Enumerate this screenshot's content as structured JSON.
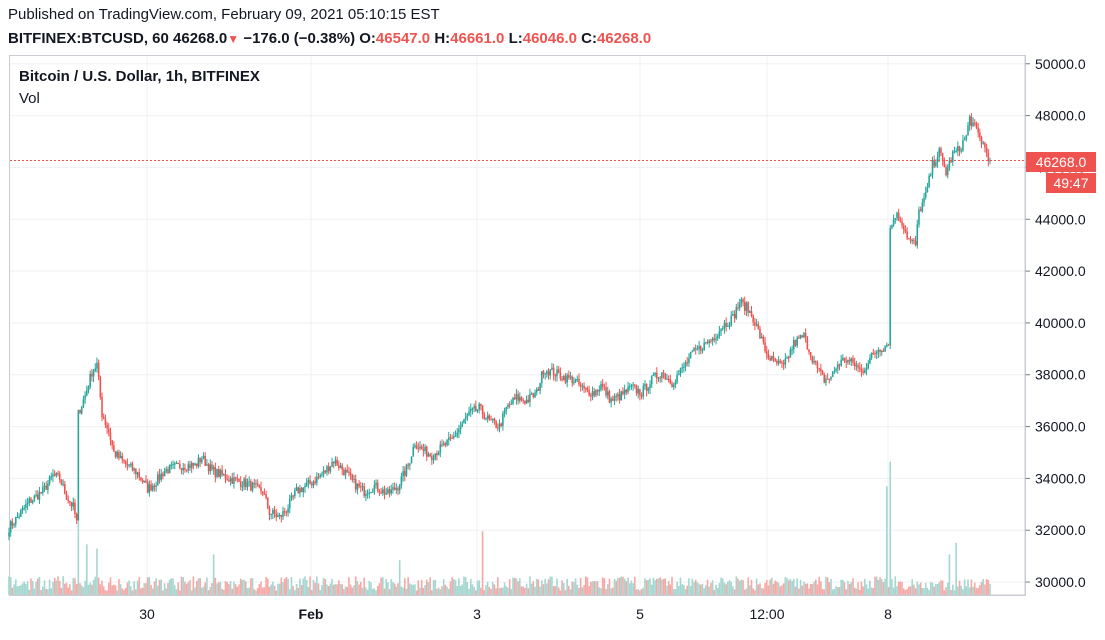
{
  "header": {
    "published": "Published on TradingView.com, February 09, 2021 05:10:15 EST",
    "symbol": "BITFINEX:BTCUSD, 60",
    "last": "46268.0",
    "change_icon": "down-triangle-icon",
    "change": "−176.0 (−0.38%)",
    "o_label": "O:",
    "o_value": "46547.0",
    "h_label": "H:",
    "h_value": "46661.0",
    "l_label": "L:",
    "l_value": "46046.0",
    "c_label": "C:",
    "c_value": "46268.0"
  },
  "legend": {
    "title": "Bitcoin / U.S. Dollar, 1h, BITFINEX",
    "volume_label": "Vol"
  },
  "price_tag": "46268.0",
  "countdown": "49:47",
  "colors": {
    "up": "#26a69a",
    "down": "#ef5350",
    "up_vol": "#a5d6d0",
    "down_vol": "#f5a9a7",
    "grid": "#eef0f3",
    "price_line": "#ef5350"
  },
  "chart_data": {
    "type": "candlestick",
    "title": "Bitcoin / U.S. Dollar, 1h, BITFINEX",
    "y_axis": {
      "ticks": [
        "30000.0",
        "32000.0",
        "34000.0",
        "36000.0",
        "38000.0",
        "40000.0",
        "42000.0",
        "44000.0",
        "46000.0",
        "48000.0",
        "50000.0"
      ],
      "range": [
        29500,
        50300
      ]
    },
    "x_axis": {
      "ticks": [
        {
          "label": "30",
          "bold": false
        },
        {
          "label": "Feb",
          "bold": true
        },
        {
          "label": "3",
          "bold": false
        },
        {
          "label": "5",
          "bold": false
        },
        {
          "label": "12:00",
          "bold": false
        },
        {
          "label": "8",
          "bold": false
        }
      ]
    },
    "last_price": 46268,
    "close_path": [
      [
        0,
        32100
      ],
      [
        5,
        32500
      ],
      [
        12,
        33100
      ],
      [
        20,
        33500
      ],
      [
        26,
        34100
      ],
      [
        30,
        34000
      ],
      [
        34,
        33300
      ],
      [
        38,
        32900
      ],
      [
        40,
        32300
      ],
      [
        41,
        36500
      ],
      [
        45,
        37200
      ],
      [
        49,
        38100
      ],
      [
        52,
        38400
      ],
      [
        55,
        36500
      ],
      [
        59,
        35800
      ],
      [
        62,
        35000
      ],
      [
        68,
        34600
      ],
      [
        76,
        34200
      ],
      [
        82,
        33600
      ],
      [
        86,
        33800
      ],
      [
        92,
        34300
      ],
      [
        102,
        34500
      ],
      [
        110,
        34500
      ],
      [
        114,
        34800
      ],
      [
        120,
        34300
      ],
      [
        130,
        34000
      ],
      [
        140,
        33800
      ],
      [
        150,
        33500
      ],
      [
        154,
        32700
      ],
      [
        160,
        32500
      ],
      [
        164,
        32800
      ],
      [
        170,
        33500
      ],
      [
        178,
        33800
      ],
      [
        186,
        34200
      ],
      [
        192,
        34700
      ],
      [
        198,
        34300
      ],
      [
        204,
        33800
      ],
      [
        210,
        33500
      ],
      [
        216,
        33700
      ],
      [
        224,
        33400
      ],
      [
        230,
        33700
      ],
      [
        236,
        34500
      ],
      [
        240,
        35400
      ],
      [
        244,
        35100
      ],
      [
        250,
        34900
      ],
      [
        256,
        35200
      ],
      [
        262,
        35500
      ],
      [
        266,
        35900
      ],
      [
        272,
        36500
      ],
      [
        278,
        36700
      ],
      [
        284,
        36200
      ],
      [
        290,
        36000
      ],
      [
        294,
        36700
      ],
      [
        300,
        37100
      ],
      [
        306,
        37000
      ],
      [
        312,
        37300
      ],
      [
        316,
        38200
      ],
      [
        322,
        38100
      ],
      [
        328,
        37900
      ],
      [
        334,
        37800
      ],
      [
        340,
        37400
      ],
      [
        346,
        37300
      ],
      [
        350,
        37600
      ],
      [
        356,
        37000
      ],
      [
        362,
        37200
      ],
      [
        368,
        37500
      ],
      [
        374,
        37300
      ],
      [
        380,
        37800
      ],
      [
        386,
        38100
      ],
      [
        392,
        37700
      ],
      [
        398,
        38200
      ],
      [
        404,
        38800
      ],
      [
        410,
        39100
      ],
      [
        416,
        39400
      ],
      [
        422,
        39900
      ],
      [
        428,
        40200
      ],
      [
        432,
        40800
      ],
      [
        436,
        40600
      ],
      [
        440,
        40200
      ],
      [
        444,
        39500
      ],
      [
        448,
        38800
      ],
      [
        452,
        38500
      ],
      [
        458,
        38300
      ],
      [
        464,
        39200
      ],
      [
        470,
        39500
      ],
      [
        474,
        38800
      ],
      [
        478,
        38200
      ],
      [
        482,
        37800
      ],
      [
        486,
        37900
      ],
      [
        490,
        38400
      ],
      [
        494,
        38600
      ],
      [
        500,
        38400
      ],
      [
        504,
        38100
      ],
      [
        510,
        38700
      ],
      [
        514,
        39000
      ],
      [
        518,
        39100
      ],
      [
        520,
        39300
      ],
      [
        521,
        43600
      ],
      [
        524,
        44200
      ],
      [
        528,
        43900
      ],
      [
        532,
        43200
      ],
      [
        536,
        43000
      ],
      [
        538,
        44300
      ],
      [
        542,
        44900
      ],
      [
        546,
        46100
      ],
      [
        550,
        46600
      ],
      [
        554,
        45800
      ],
      [
        558,
        46500
      ],
      [
        562,
        46700
      ],
      [
        566,
        47200
      ],
      [
        568,
        47900
      ],
      [
        572,
        47400
      ],
      [
        576,
        46900
      ],
      [
        580,
        46268
      ]
    ],
    "volume_units": "relative",
    "volume_spikes": [
      {
        "bar": 41,
        "value": 0.52
      },
      {
        "bar": 46,
        "value": 0.35
      },
      {
        "bar": 52,
        "value": 0.32
      },
      {
        "bar": 121,
        "value": 0.28
      },
      {
        "bar": 231,
        "value": 0.24
      },
      {
        "bar": 280,
        "value": 0.44
      },
      {
        "bar": 521,
        "value": 0.92
      },
      {
        "bar": 519,
        "value": 0.75
      },
      {
        "bar": 560,
        "value": 0.36
      },
      {
        "bar": 556,
        "value": 0.28
      }
    ]
  }
}
